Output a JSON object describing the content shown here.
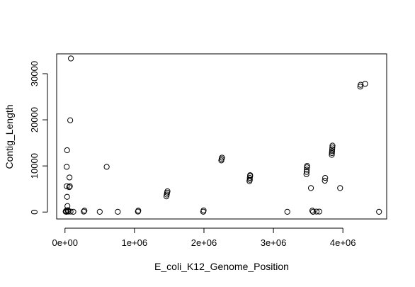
{
  "chart_data": {
    "type": "scatter",
    "title": "",
    "xlabel": "E_coli_K12_Genome_Position",
    "ylabel": "Contig_Length",
    "xlim": [
      -120000,
      4630000
    ],
    "ylim": [
      -1500,
      34300
    ],
    "x_ticks": [
      0,
      1000000,
      2000000,
      3000000,
      4000000
    ],
    "x_tick_labels": [
      "0e+00",
      "1e+06",
      "2e+06",
      "3e+06",
      "4e+06"
    ],
    "y_ticks": [
      0,
      10000,
      20000,
      30000
    ],
    "y_tick_labels": [
      "0",
      "10000",
      "20000",
      "30000"
    ],
    "grid": false,
    "legend": "none",
    "point_style": "open-circle",
    "colors": {
      "point": "#000000",
      "axis": "#000000",
      "background": "#ffffff"
    },
    "points": [
      {
        "x": 10000,
        "y": 100
      },
      {
        "x": 15000,
        "y": 250
      },
      {
        "x": 20000,
        "y": 50
      },
      {
        "x": 25000,
        "y": 5600
      },
      {
        "x": 25000,
        "y": 9800
      },
      {
        "x": 30000,
        "y": 13400
      },
      {
        "x": 30000,
        "y": 3300
      },
      {
        "x": 35000,
        "y": 1300
      },
      {
        "x": 40000,
        "y": 400
      },
      {
        "x": 45000,
        "y": 100
      },
      {
        "x": 50000,
        "y": 200
      },
      {
        "x": 60000,
        "y": 5400
      },
      {
        "x": 65000,
        "y": 7500
      },
      {
        "x": 70000,
        "y": 5600
      },
      {
        "x": 75000,
        "y": 19900
      },
      {
        "x": 80000,
        "y": 100
      },
      {
        "x": 85000,
        "y": 33300
      },
      {
        "x": 120000,
        "y": 50
      },
      {
        "x": 270000,
        "y": 100
      },
      {
        "x": 280000,
        "y": 300
      },
      {
        "x": 500000,
        "y": 50
      },
      {
        "x": 600000,
        "y": 9800
      },
      {
        "x": 760000,
        "y": 50
      },
      {
        "x": 1050000,
        "y": 100
      },
      {
        "x": 1055000,
        "y": 300
      },
      {
        "x": 1460000,
        "y": 3400
      },
      {
        "x": 1465000,
        "y": 3800
      },
      {
        "x": 1470000,
        "y": 4200
      },
      {
        "x": 1475000,
        "y": 4500
      },
      {
        "x": 1990000,
        "y": 80
      },
      {
        "x": 1995000,
        "y": 350
      },
      {
        "x": 2250000,
        "y": 11200
      },
      {
        "x": 2255000,
        "y": 11500
      },
      {
        "x": 2260000,
        "y": 11800
      },
      {
        "x": 2655000,
        "y": 6700
      },
      {
        "x": 2660000,
        "y": 7000
      },
      {
        "x": 2660000,
        "y": 7400
      },
      {
        "x": 2665000,
        "y": 7800
      },
      {
        "x": 2665000,
        "y": 8000
      },
      {
        "x": 3200000,
        "y": 50
      },
      {
        "x": 3475000,
        "y": 8200
      },
      {
        "x": 3478000,
        "y": 8700
      },
      {
        "x": 3480000,
        "y": 9200
      },
      {
        "x": 3482000,
        "y": 9700
      },
      {
        "x": 3485000,
        "y": 10000
      },
      {
        "x": 3540000,
        "y": 5200
      },
      {
        "x": 3560000,
        "y": 300
      },
      {
        "x": 3570000,
        "y": 50
      },
      {
        "x": 3620000,
        "y": 100
      },
      {
        "x": 3660000,
        "y": 100
      },
      {
        "x": 3740000,
        "y": 6800
      },
      {
        "x": 3745000,
        "y": 7400
      },
      {
        "x": 3840000,
        "y": 12400
      },
      {
        "x": 3842000,
        "y": 12800
      },
      {
        "x": 3844000,
        "y": 13200
      },
      {
        "x": 3846000,
        "y": 13600
      },
      {
        "x": 3848000,
        "y": 14000
      },
      {
        "x": 3850000,
        "y": 14400
      },
      {
        "x": 3960000,
        "y": 5200
      },
      {
        "x": 4250000,
        "y": 27200
      },
      {
        "x": 4255000,
        "y": 27600
      },
      {
        "x": 4320000,
        "y": 27800
      },
      {
        "x": 4520000,
        "y": 50
      }
    ]
  }
}
